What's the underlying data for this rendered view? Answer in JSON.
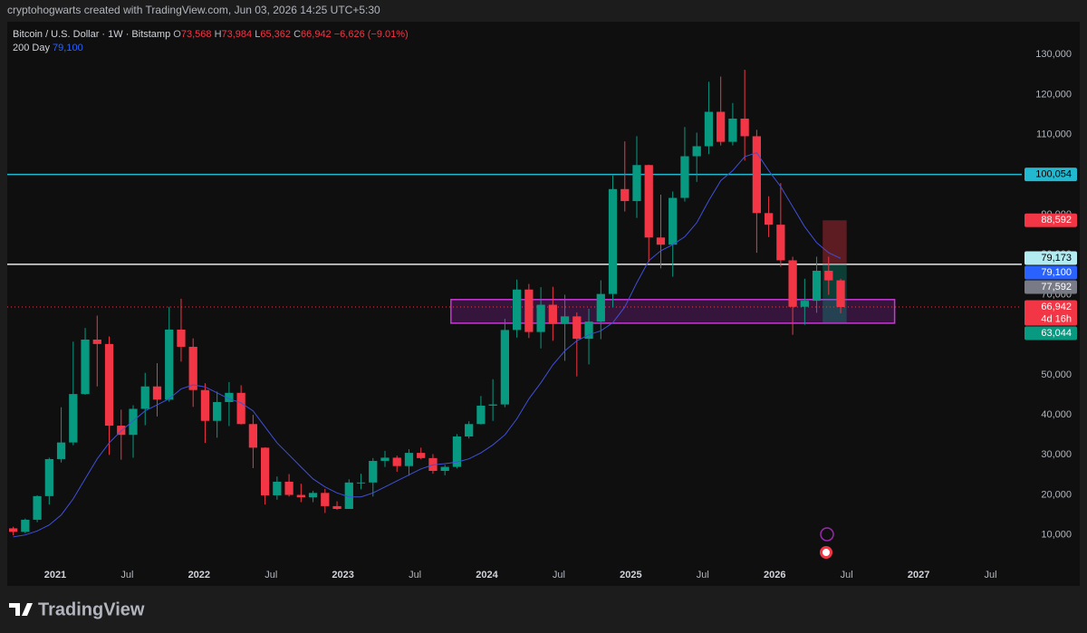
{
  "attribution": "cryptohogwarts created with TradingView.com, Jun 03, 2026 14:25 UTC+5:30",
  "brand": "TradingView",
  "chart_data": {
    "type": "candlestick",
    "up_color": "#089981",
    "down_color": "#f23645",
    "legend": {
      "ohlc_keys": [
        "O",
        "H",
        "L",
        "C"
      ],
      "ohlc_values": [
        "73,568",
        "73,984",
        "65,362",
        "66,942"
      ],
      "change": "−6,626 (−9.01%)"
    },
    "x": [
      "2020-09",
      "2020-10",
      "2020-11",
      "2020-12",
      "2021-01",
      "2021-02",
      "2021-03",
      "2021-04",
      "2021-05",
      "2021-06",
      "2021-07",
      "2021-08",
      "2021-09",
      "2021-10",
      "2021-11",
      "2021-12",
      "2022-01",
      "2022-02",
      "2022-03",
      "2022-04",
      "2022-05",
      "2022-06",
      "2022-07",
      "2022-08",
      "2022-09",
      "2022-10",
      "2022-11",
      "2022-12",
      "2023-01",
      "2023-02",
      "2023-03",
      "2023-04",
      "2023-05",
      "2023-06",
      "2023-07",
      "2023-08",
      "2023-09",
      "2023-10",
      "2023-11",
      "2023-12",
      "2024-01",
      "2024-02",
      "2024-03",
      "2024-04",
      "2024-05",
      "2024-06",
      "2024-07",
      "2024-08",
      "2024-09",
      "2024-10",
      "2024-11",
      "2024-12",
      "2025-01",
      "2025-02",
      "2025-03",
      "2025-04",
      "2025-05",
      "2025-06",
      "2025-07",
      "2025-08",
      "2025-09",
      "2025-10",
      "2025-11",
      "2025-12",
      "2026-01",
      "2026-02",
      "2026-03",
      "2026-04",
      "2026-05",
      "2026-06"
    ],
    "series": [
      {
        "name": "Bitcoin / U.S. Dollar · 1W · Bitstamp",
        "ohlc": [
          [
            11650,
            12050,
            9900,
            10780
          ],
          [
            10780,
            14100,
            10400,
            13800
          ],
          [
            13800,
            19900,
            13200,
            19700
          ],
          [
            19700,
            29300,
            17600,
            28950
          ],
          [
            28950,
            41900,
            28100,
            33100
          ],
          [
            33100,
            58300,
            32400,
            45200
          ],
          [
            45200,
            61700,
            45000,
            58800
          ],
          [
            58800,
            64800,
            47100,
            57700
          ],
          [
            57700,
            59600,
            30000,
            37300
          ],
          [
            37300,
            41300,
            28800,
            35000
          ],
          [
            35000,
            42400,
            29300,
            41500
          ],
          [
            41500,
            50500,
            37400,
            47100
          ],
          [
            47100,
            52900,
            39600,
            43800
          ],
          [
            43800,
            67000,
            43300,
            61300
          ],
          [
            61300,
            69000,
            53300,
            57000
          ],
          [
            57000,
            59100,
            42000,
            46200
          ],
          [
            46200,
            47900,
            33000,
            38500
          ],
          [
            38500,
            45800,
            34300,
            43200
          ],
          [
            43200,
            48200,
            37200,
            45500
          ],
          [
            45500,
            47400,
            37600,
            37700
          ],
          [
            37700,
            40000,
            26700,
            31800
          ],
          [
            31800,
            31900,
            17600,
            19900
          ],
          [
            19900,
            24600,
            18800,
            23300
          ],
          [
            23300,
            25200,
            19600,
            20000
          ],
          [
            20000,
            22800,
            18200,
            19400
          ],
          [
            19400,
            21000,
            18200,
            20500
          ],
          [
            20500,
            21500,
            15500,
            17200
          ],
          [
            17200,
            18400,
            16300,
            16500
          ],
          [
            16500,
            23900,
            16500,
            23100
          ],
          [
            23100,
            25300,
            21400,
            23100
          ],
          [
            23100,
            29200,
            19600,
            28500
          ],
          [
            28500,
            31000,
            27000,
            29300
          ],
          [
            29300,
            29800,
            25800,
            27200
          ],
          [
            27200,
            31400,
            24800,
            30500
          ],
          [
            30500,
            31800,
            28900,
            29200
          ],
          [
            29200,
            30200,
            25300,
            26000
          ],
          [
            26000,
            27500,
            24900,
            27000
          ],
          [
            27000,
            35200,
            26600,
            34600
          ],
          [
            34600,
            38400,
            34100,
            37700
          ],
          [
            37700,
            44700,
            37600,
            42300
          ],
          [
            42300,
            48900,
            38500,
            42600
          ],
          [
            42600,
            64000,
            41900,
            61200
          ],
          [
            61200,
            73800,
            59300,
            71300
          ],
          [
            71300,
            72700,
            59200,
            60700
          ],
          [
            60700,
            71900,
            56600,
            67500
          ],
          [
            67500,
            72000,
            58500,
            62700
          ],
          [
            62700,
            70000,
            53500,
            64600
          ],
          [
            64600,
            65600,
            49600,
            59000
          ],
          [
            59000,
            66500,
            52600,
            63300
          ],
          [
            63300,
            73600,
            58900,
            70200
          ],
          [
            70200,
            99800,
            66800,
            96400
          ],
          [
            96400,
            108300,
            90800,
            93400
          ],
          [
            93400,
            109600,
            89200,
            102400
          ],
          [
            102400,
            102500,
            78200,
            84300
          ],
          [
            84300,
            95000,
            76600,
            82500
          ],
          [
            82500,
            95800,
            74500,
            94200
          ],
          [
            94200,
            111900,
            93300,
            104600
          ],
          [
            104600,
            110500,
            98200,
            107100
          ],
          [
            107100,
            123200,
            105100,
            115700
          ],
          [
            115700,
            124500,
            107300,
            108200
          ],
          [
            108200,
            117900,
            107300,
            114000
          ],
          [
            114000,
            126200,
            103500,
            109600
          ],
          [
            109600,
            111200,
            80500,
            90400
          ],
          [
            90400,
            94600,
            84400,
            87500
          ],
          [
            87500,
            97900,
            77000,
            78600
          ],
          [
            78600,
            79500,
            60000,
            67000
          ],
          [
            67000,
            74000,
            62500,
            68500
          ],
          [
            68500,
            79500,
            65500,
            76000
          ],
          [
            76000,
            79500,
            70000,
            73600
          ],
          [
            73600,
            73984,
            65362,
            66942
          ]
        ]
      },
      {
        "name": "200 Day",
        "color": "#3f51d8",
        "last_label": "79,100",
        "values": [
          9500,
          10000,
          11000,
          12500,
          15000,
          19000,
          24000,
          29000,
          33000,
          36000,
          38500,
          41000,
          42500,
          44000,
          46500,
          47500,
          47000,
          45500,
          44000,
          43000,
          41000,
          37000,
          33000,
          30000,
          27000,
          24000,
          22000,
          20500,
          19500,
          19500,
          20500,
          22000,
          23500,
          25000,
          26500,
          27500,
          27800,
          28200,
          29000,
          30500,
          32500,
          35000,
          39000,
          44000,
          48000,
          52500,
          56000,
          58500,
          60000,
          61000,
          63000,
          67000,
          73000,
          78500,
          81000,
          82500,
          84500,
          88000,
          93500,
          98500,
          101000,
          104500,
          105500,
          101000,
          97000,
          92000,
          87000,
          83000,
          80500,
          79100
        ]
      }
    ],
    "xlim": [
      "2020-09",
      "2027-09"
    ],
    "xticks": [
      {
        "value": "2021-01",
        "label": "2021"
      },
      {
        "value": "2021-07",
        "label": "Jul"
      },
      {
        "value": "2022-01",
        "label": "2022"
      },
      {
        "value": "2022-07",
        "label": "Jul"
      },
      {
        "value": "2023-01",
        "label": "2023"
      },
      {
        "value": "2023-07",
        "label": "Jul"
      },
      {
        "value": "2024-01",
        "label": "2024"
      },
      {
        "value": "2024-07",
        "label": "Jul"
      },
      {
        "value": "2025-01",
        "label": "2025"
      },
      {
        "value": "2025-07",
        "label": "Jul"
      },
      {
        "value": "2026-01",
        "label": "2026"
      },
      {
        "value": "2026-07",
        "label": "Jul"
      },
      {
        "value": "2027-01",
        "label": "2027"
      },
      {
        "value": "2027-07",
        "label": "Jul"
      }
    ],
    "ylim": [
      2700,
      138200
    ],
    "yticks": [
      {
        "value": 10000,
        "label": "10,000"
      },
      {
        "value": 20000,
        "label": "20,000"
      },
      {
        "value": 30000,
        "label": "30,000"
      },
      {
        "value": 40000,
        "label": "40,000"
      },
      {
        "value": 50000,
        "label": "50,000"
      },
      {
        "value": 60000,
        "label": "60,000"
      },
      {
        "value": 70000,
        "label": "70,000"
      },
      {
        "value": 80000,
        "label": "80,000"
      },
      {
        "value": 90000,
        "label": "90,000"
      },
      {
        "value": 100000,
        "label": "100,000"
      },
      {
        "value": 110000,
        "label": "110,000"
      },
      {
        "value": 120000,
        "label": "120,000"
      },
      {
        "value": 130000,
        "label": "130,000"
      }
    ],
    "zone": {
      "x": [
        "2023-10",
        "2026-11"
      ],
      "y": [
        62900,
        68800
      ]
    },
    "position": {
      "x": [
        "2026-05",
        "2026-07"
      ],
      "stop": 88592,
      "entry": 77592,
      "target": 63044
    },
    "price_tags": [
      {
        "value": 100054,
        "label": "100,054",
        "color": "#22b8cf",
        "text_color": "#000000",
        "line_color": "#22b8cf"
      },
      {
        "value": 88592,
        "label": "88,592",
        "color": "#f23645",
        "text_color": "#ffffff"
      },
      {
        "value": 79173,
        "label": "79,173",
        "color": "#b2ebf2",
        "text_color": "#000000"
      },
      {
        "value": 79100,
        "label": "79,100",
        "color": "#2962ff",
        "text_color": "#ffffff"
      },
      {
        "value": 77592,
        "label": "77,592",
        "color": "#787b86",
        "text_color": "#ffffff",
        "line_color": "#e8e8e8"
      },
      {
        "value": 66942,
        "label": "66,942",
        "countdown": "4d 16h",
        "color": "#f23645",
        "text_color": "#ffffff",
        "line_color": "#f23645",
        "line_style": "dotted"
      },
      {
        "value": 63044,
        "label": "63,044",
        "color": "#089981",
        "text_color": "#ffffff"
      }
    ]
  }
}
